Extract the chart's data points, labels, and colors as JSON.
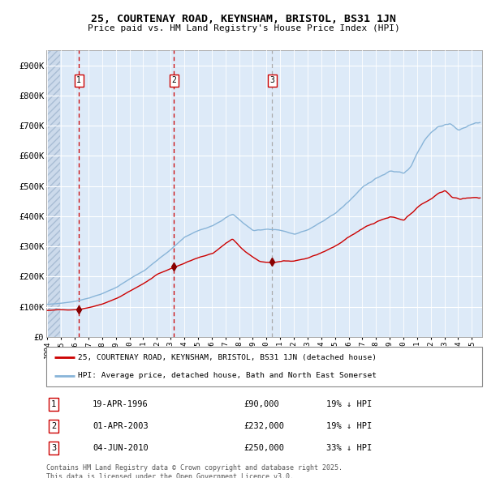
{
  "title_line1": "25, COURTENAY ROAD, KEYNSHAM, BRISTOL, BS31 1JN",
  "title_line2": "Price paid vs. HM Land Registry's House Price Index (HPI)",
  "ylabel_ticks": [
    "£0",
    "£100K",
    "£200K",
    "£300K",
    "£400K",
    "£500K",
    "£600K",
    "£700K",
    "£800K",
    "£900K"
  ],
  "ytick_vals": [
    0,
    100000,
    200000,
    300000,
    400000,
    500000,
    600000,
    700000,
    800000,
    900000
  ],
  "ylim": [
    0,
    950000
  ],
  "xlim_start": 1993.92,
  "xlim_end": 2025.75,
  "bg_color": "#ddeaf8",
  "hatch_color": "#c0cfe0",
  "grid_color": "#ffffff",
  "transaction_dates": [
    1996.3,
    2003.25,
    2010.42
  ],
  "transaction_prices": [
    90000,
    232000,
    250000
  ],
  "transaction_labels": [
    "1",
    "2",
    "3"
  ],
  "transaction_vline_styles": [
    "red_dash",
    "red_dash",
    "gray_dash"
  ],
  "legend_line1": "25, COURTENAY ROAD, KEYNSHAM, BRISTOL, BS31 1JN (detached house)",
  "legend_line2": "HPI: Average price, detached house, Bath and North East Somerset",
  "table_rows": [
    {
      "num": "1",
      "date": "19-APR-1996",
      "price": "£90,000",
      "pct": "19% ↓ HPI"
    },
    {
      "num": "2",
      "date": "01-APR-2003",
      "price": "£232,000",
      "pct": "19% ↓ HPI"
    },
    {
      "num": "3",
      "date": "04-JUN-2010",
      "price": "£250,000",
      "pct": "33% ↓ HPI"
    }
  ],
  "footnote": "Contains HM Land Registry data © Crown copyright and database right 2025.\nThis data is licensed under the Open Government Licence v3.0.",
  "red_line_color": "#cc0000",
  "blue_line_color": "#88b4d8",
  "marker_color": "#880000",
  "vline_color_red": "#cc0000",
  "vline_color_gray": "#aaaaaa",
  "label_box_color": "#cc0000",
  "hpi_waypoints_years": [
    1994.0,
    1995.0,
    1996.0,
    1997.0,
    1998.0,
    1999.0,
    2000.0,
    2001.0,
    2002.0,
    2003.0,
    2004.0,
    2005.0,
    2006.0,
    2007.0,
    2007.5,
    2008.0,
    2009.0,
    2010.0,
    2011.0,
    2012.0,
    2013.0,
    2014.0,
    2015.0,
    2016.0,
    2017.0,
    2018.0,
    2019.0,
    2020.0,
    2020.5,
    2021.0,
    2021.5,
    2022.0,
    2022.5,
    2023.0,
    2023.5,
    2024.0,
    2024.5,
    2025.0,
    2025.5
  ],
  "hpi_waypoints_vals": [
    108000,
    112000,
    118000,
    130000,
    145000,
    165000,
    195000,
    220000,
    255000,
    290000,
    330000,
    350000,
    370000,
    400000,
    410000,
    390000,
    355000,
    360000,
    358000,
    345000,
    360000,
    385000,
    415000,
    455000,
    500000,
    535000,
    555000,
    550000,
    570000,
    620000,
    660000,
    690000,
    710000,
    720000,
    715000,
    700000,
    710000,
    725000,
    730000
  ],
  "red_waypoints_years": [
    1994.0,
    1995.0,
    1995.5,
    1996.3,
    1997.0,
    1998.0,
    1999.0,
    2000.0,
    2001.0,
    2002.0,
    2003.25,
    2004.0,
    2005.0,
    2006.0,
    2007.0,
    2007.5,
    2008.0,
    2008.5,
    2009.0,
    2009.5,
    2010.0,
    2010.42,
    2011.0,
    2012.0,
    2013.0,
    2014.0,
    2015.0,
    2016.0,
    2017.0,
    2018.0,
    2019.0,
    2020.0,
    2020.5,
    2021.0,
    2022.0,
    2022.5,
    2023.0,
    2023.5,
    2024.0,
    2024.5,
    2025.0,
    2025.5
  ],
  "red_waypoints_vals": [
    88000,
    90000,
    88000,
    90000,
    96000,
    108000,
    125000,
    150000,
    175000,
    205000,
    232000,
    245000,
    265000,
    280000,
    315000,
    330000,
    305000,
    285000,
    268000,
    255000,
    252000,
    250000,
    255000,
    258000,
    270000,
    290000,
    315000,
    345000,
    375000,
    395000,
    410000,
    395000,
    415000,
    435000,
    465000,
    480000,
    490000,
    470000,
    462000,
    465000,
    468000,
    470000
  ]
}
